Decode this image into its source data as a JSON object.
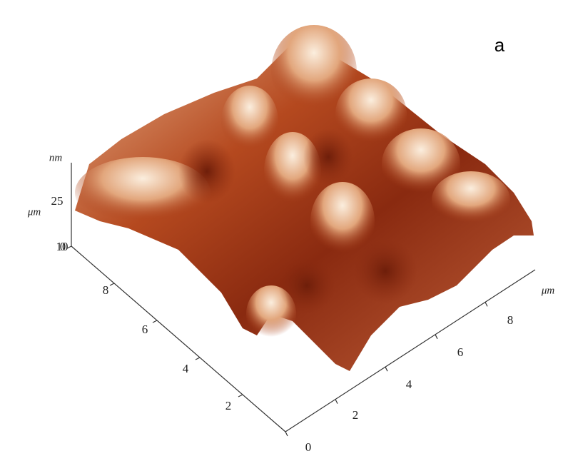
{
  "panel_label": "a",
  "z_axis": {
    "unit": "nm",
    "ticks": [
      25,
      0
    ]
  },
  "y_axis": {
    "unit": "μm",
    "ticks": [
      10,
      8,
      6,
      4,
      2
    ]
  },
  "x_axis": {
    "unit": "μm",
    "ticks": [
      0,
      2,
      4,
      6,
      8
    ]
  }
}
